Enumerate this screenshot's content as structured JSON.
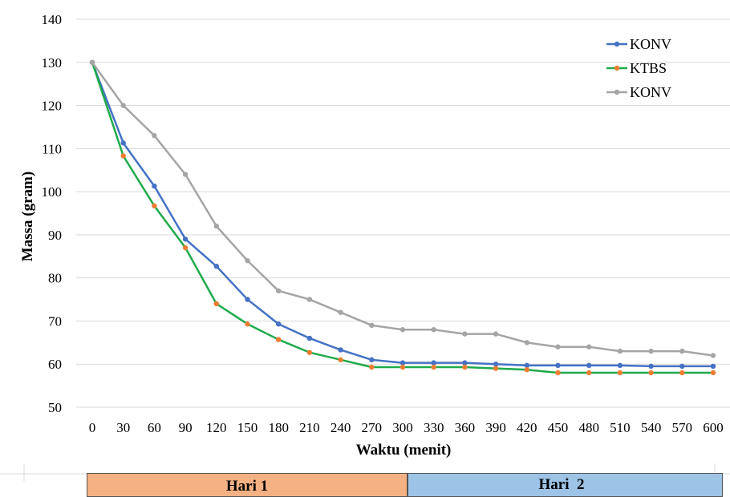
{
  "chart_data": {
    "type": "line",
    "xlabel": "Waktu (menit)",
    "ylabel": "Massa (gram)",
    "x": [
      0,
      30,
      60,
      90,
      120,
      150,
      180,
      210,
      240,
      270,
      300,
      330,
      360,
      390,
      420,
      450,
      480,
      510,
      540,
      570,
      600
    ],
    "ylim": [
      50,
      140
    ],
    "yticks": [
      50,
      60,
      70,
      80,
      90,
      100,
      110,
      120,
      130,
      140
    ],
    "grid": "horizontal",
    "legend_position": "top-right",
    "series": [
      {
        "name": "KONV",
        "color": "#4472C4",
        "values": [
          130,
          111.3,
          101.3,
          89,
          82.7,
          75,
          69.3,
          66,
          63.3,
          61,
          60.3,
          60.3,
          60.3,
          60,
          59.7,
          59.7,
          59.7,
          59.7,
          59.5,
          59.5,
          59.5
        ]
      },
      {
        "name": "KTBS",
        "color": "#ED7D31",
        "line_color": "#1FAA4B",
        "values": [
          130,
          108.3,
          96.7,
          87,
          74,
          69.3,
          65.7,
          62.7,
          61,
          59.3,
          59.3,
          59.3,
          59.3,
          59,
          58.7,
          58,
          58,
          58,
          58,
          58,
          58
        ]
      },
      {
        "name": "KONV",
        "color": "#A5A5A5",
        "values": [
          130,
          120,
          113,
          104,
          92,
          84,
          77,
          75,
          72,
          69,
          68,
          68,
          67,
          67,
          65,
          64,
          64,
          63,
          63,
          63,
          62
        ]
      }
    ],
    "days": [
      {
        "label": "Hari 1",
        "color": "#F4B183"
      },
      {
        "label": "Hari  2",
        "color": "#9DC3E6"
      }
    ]
  }
}
